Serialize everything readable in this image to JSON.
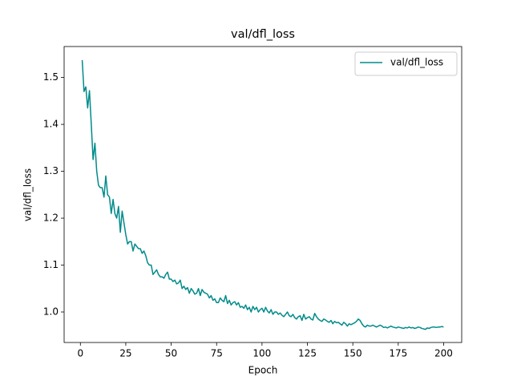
{
  "chart_data": {
    "type": "line",
    "title": "val/dfl_loss",
    "x_label": "Epoch",
    "y_label": "val/dfl_loss",
    "xlim": [
      -8.95,
      209.95
    ],
    "ylim": [
      0.935,
      1.566
    ],
    "xticks": [
      0,
      25,
      50,
      75,
      100,
      125,
      150,
      175,
      200
    ],
    "yticks": [
      {
        "value": 1.0,
        "label": "1.0"
      },
      1.1,
      1.2,
      1.3,
      1.4,
      1.5
    ],
    "legend": "upper right",
    "series": [
      {
        "name": "val/dfl_loss",
        "color": "#008b8b",
        "x": [
          1,
          2,
          3,
          4,
          5,
          6,
          7,
          8,
          9,
          10,
          11,
          12,
          13,
          14,
          15,
          16,
          17,
          18,
          19,
          20,
          21,
          22,
          23,
          24,
          25,
          26,
          27,
          28,
          29,
          30,
          31,
          32,
          33,
          34,
          35,
          36,
          37,
          38,
          39,
          40,
          41,
          42,
          43,
          44,
          45,
          46,
          47,
          48,
          49,
          50,
          51,
          52,
          53,
          54,
          55,
          56,
          57,
          58,
          59,
          60,
          61,
          62,
          63,
          64,
          65,
          66,
          67,
          68,
          69,
          70,
          71,
          72,
          73,
          74,
          75,
          76,
          77,
          78,
          79,
          80,
          81,
          82,
          83,
          84,
          85,
          86,
          87,
          88,
          89,
          90,
          91,
          92,
          93,
          94,
          95,
          96,
          97,
          98,
          99,
          100,
          101,
          102,
          103,
          104,
          105,
          106,
          107,
          108,
          109,
          110,
          111,
          112,
          113,
          114,
          115,
          116,
          117,
          118,
          119,
          120,
          121,
          122,
          123,
          124,
          125,
          126,
          127,
          128,
          129,
          130,
          131,
          132,
          133,
          134,
          135,
          136,
          137,
          138,
          139,
          140,
          141,
          142,
          143,
          144,
          145,
          146,
          147,
          148,
          149,
          150,
          151,
          152,
          153,
          154,
          155,
          156,
          157,
          158,
          159,
          160,
          161,
          162,
          163,
          164,
          165,
          166,
          167,
          168,
          169,
          170,
          171,
          172,
          173,
          174,
          175,
          176,
          177,
          178,
          179,
          180,
          181,
          182,
          183,
          184,
          185,
          186,
          187,
          188,
          189,
          190,
          191,
          192,
          193,
          194,
          195,
          196,
          197,
          198,
          199,
          200
        ],
        "values": [
          1.537,
          1.47,
          1.48,
          1.435,
          1.472,
          1.4,
          1.325,
          1.36,
          1.3,
          1.27,
          1.265,
          1.265,
          1.245,
          1.29,
          1.25,
          1.245,
          1.21,
          1.24,
          1.21,
          1.2,
          1.225,
          1.17,
          1.215,
          1.19,
          1.165,
          1.145,
          1.15,
          1.15,
          1.13,
          1.145,
          1.14,
          1.135,
          1.135,
          1.125,
          1.13,
          1.12,
          1.105,
          1.1,
          1.1,
          1.08,
          1.085,
          1.09,
          1.08,
          1.075,
          1.075,
          1.072,
          1.08,
          1.085,
          1.07,
          1.07,
          1.065,
          1.068,
          1.06,
          1.062,
          1.068,
          1.05,
          1.055,
          1.048,
          1.052,
          1.04,
          1.05,
          1.045,
          1.038,
          1.04,
          1.05,
          1.035,
          1.048,
          1.042,
          1.04,
          1.038,
          1.03,
          1.035,
          1.025,
          1.028,
          1.02,
          1.02,
          1.03,
          1.025,
          1.022,
          1.035,
          1.018,
          1.025,
          1.015,
          1.02,
          1.022,
          1.015,
          1.02,
          1.01,
          1.012,
          1.008,
          1.015,
          1.005,
          1.01,
          1.0,
          1.012,
          1.005,
          1.01,
          1.0,
          1.005,
          1.008,
          1.0,
          1.01,
          1.002,
          0.998,
          1.005,
          0.995,
          1.0,
          1.0,
          0.995,
          0.998,
          0.993,
          0.99,
          0.995,
          1.0,
          0.992,
          0.99,
          0.995,
          0.988,
          0.985,
          0.99,
          0.992,
          0.982,
          0.995,
          0.985,
          0.988,
          0.99,
          0.985,
          0.983,
          0.997,
          0.99,
          0.985,
          0.982,
          0.98,
          0.985,
          0.983,
          0.98,
          0.978,
          0.982,
          0.975,
          0.98,
          0.977,
          0.978,
          0.975,
          0.972,
          0.978,
          0.975,
          0.97,
          0.975,
          0.973,
          0.975,
          0.977,
          0.98,
          0.985,
          0.982,
          0.975,
          0.97,
          0.968,
          0.972,
          0.97,
          0.97,
          0.972,
          0.97,
          0.968,
          0.97,
          0.972,
          0.97,
          0.967,
          0.968,
          0.966,
          0.968,
          0.97,
          0.968,
          0.967,
          0.966,
          0.968,
          0.967,
          0.966,
          0.965,
          0.967,
          0.966,
          0.968,
          0.966,
          0.967,
          0.965,
          0.966,
          0.968,
          0.967,
          0.965,
          0.964,
          0.963,
          0.966,
          0.965,
          0.967,
          0.968,
          0.968,
          0.967,
          0.968,
          0.968,
          0.969,
          0.968
        ]
      }
    ]
  }
}
